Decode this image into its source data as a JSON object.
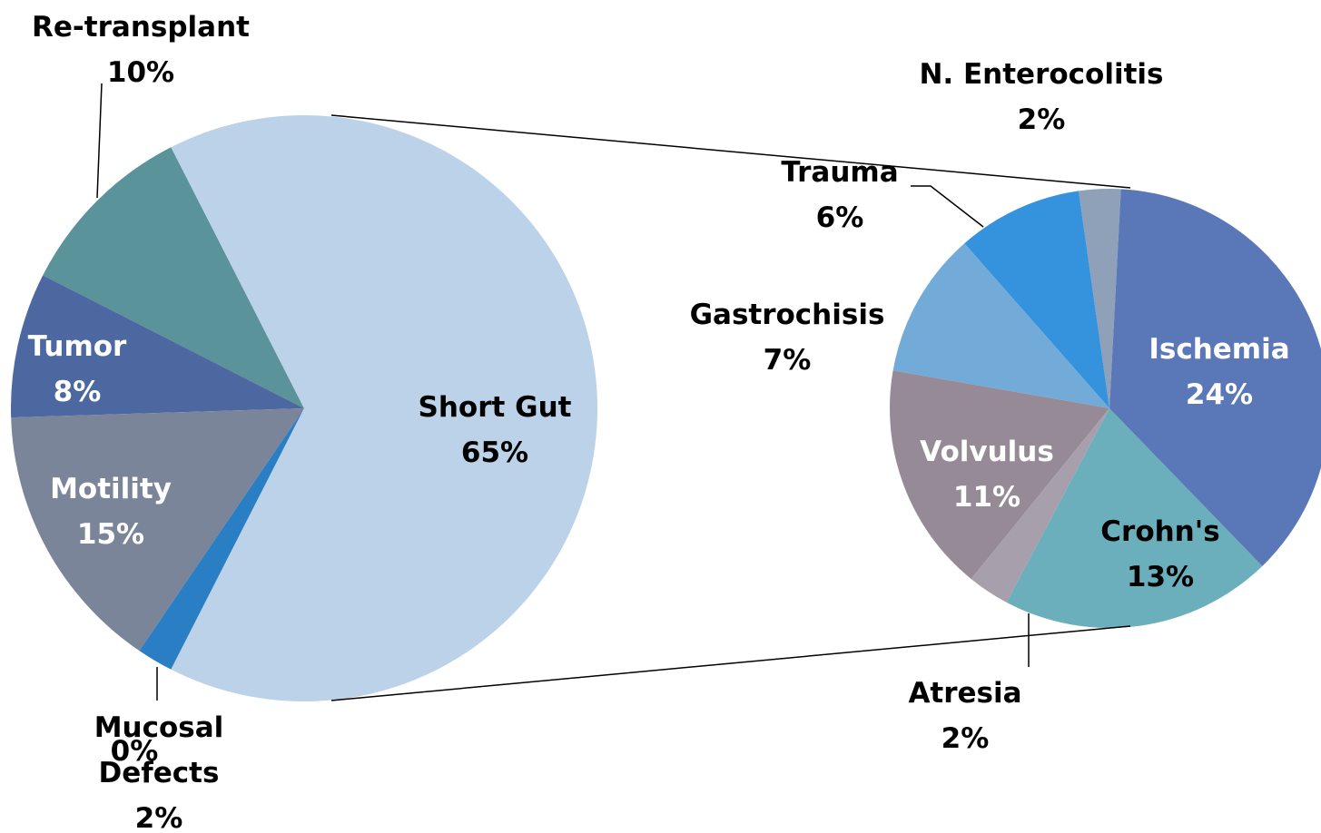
{
  "chart_data": [
    {
      "type": "pie",
      "categories": [
        "Short Gut",
        "Mucosal Defects",
        null,
        "Motility",
        "Tumor",
        "Re-transplant"
      ],
      "values": [
        65,
        2,
        0,
        15,
        8,
        10
      ],
      "value_labels": [
        "65%",
        "2%",
        "0%",
        "15%",
        "8%",
        "10%"
      ],
      "colors": [
        "#bcd2e8",
        "#2a7fc4",
        "#2a7fc4",
        "#7a8599",
        "#4d67a0",
        "#5a9399"
      ]
    },
    {
      "type": "pie",
      "categories": [
        "Ischemia",
        "Crohn's",
        "Atresia",
        "Volvulus",
        "Gastrochisis",
        "Trauma",
        "N. Enterocolitis"
      ],
      "values": [
        24,
        13,
        2,
        11,
        7,
        6,
        2
      ],
      "value_labels": [
        "24%",
        "13%",
        "2%",
        "11%",
        "7%",
        "6%",
        "2%"
      ],
      "colors": [
        "#5a78b8",
        "#6aafbb",
        "#a89fac",
        "#968a96",
        "#72aad8",
        "#3593de",
        "#8fa1b8"
      ]
    }
  ]
}
